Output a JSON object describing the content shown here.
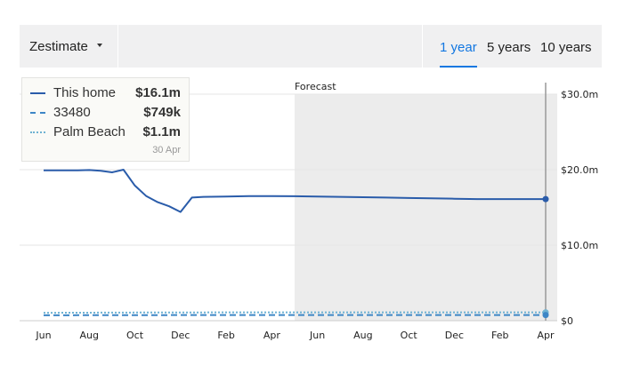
{
  "header": {
    "dropdown_label": "Zestimate",
    "tabs": [
      {
        "label": "1 year",
        "active": true
      },
      {
        "label": "5 years",
        "active": false
      },
      {
        "label": "10 years",
        "active": false
      }
    ]
  },
  "legend": {
    "items": [
      {
        "name": "This home",
        "value": "$16.1m",
        "style": "solid",
        "color": "#2a5caa"
      },
      {
        "name": "33480",
        "value": "$749k",
        "style": "dashed",
        "color": "#3d86c6"
      },
      {
        "name": "Palm Beach",
        "value": "$1.1m",
        "style": "dotted",
        "color": "#6fb2d2"
      }
    ],
    "date": "30 Apr"
  },
  "chart_data": {
    "type": "line",
    "forecast_label": "Forecast",
    "x": [
      0,
      0.5,
      1,
      1.5,
      2,
      2.5,
      3,
      3.5,
      4,
      4.5,
      5,
      5.5,
      6,
      6.5,
      7,
      8,
      9,
      10,
      11,
      12,
      13,
      14,
      15,
      16,
      17,
      18,
      19,
      20,
      21,
      22
    ],
    "forecast_start": 11,
    "x_tick_labels": [
      "Jun",
      "Aug",
      "Oct",
      "Dec",
      "Feb",
      "Apr",
      "Jun",
      "Aug",
      "Oct",
      "Dec",
      "Feb",
      "Apr"
    ],
    "x_tick_positions": [
      0,
      2,
      4,
      6,
      8,
      10,
      12,
      14,
      16,
      18,
      20,
      22
    ],
    "y_tick_labels": [
      "$0",
      "$10.0m",
      "$20.0m",
      "$30.0m"
    ],
    "y_tick_values": [
      0,
      10,
      20,
      30
    ],
    "ylim": [
      0,
      30
    ],
    "ylabel": "",
    "xlabel": "",
    "title": "",
    "series": [
      {
        "name": "This home",
        "style": "solid",
        "color": "#2a5caa",
        "values": [
          19.9,
          19.9,
          19.9,
          19.9,
          19.95,
          19.85,
          19.65,
          20.0,
          17.9,
          16.5,
          15.7,
          15.15,
          14.4,
          16.3,
          16.4,
          16.45,
          16.5,
          16.5,
          16.48,
          16.45,
          16.4,
          16.35,
          16.3,
          16.25,
          16.2,
          16.15,
          16.1,
          16.1,
          16.1,
          16.1
        ]
      },
      {
        "name": "33480",
        "style": "dashed",
        "color": "#3d86c6",
        "values": [
          0.72,
          0.72,
          0.72,
          0.73,
          0.73,
          0.73,
          0.73,
          0.74,
          0.74,
          0.74,
          0.74,
          0.74,
          0.75,
          0.75,
          0.75,
          0.75,
          0.75,
          0.75,
          0.75,
          0.75,
          0.75,
          0.75,
          0.75,
          0.75,
          0.75,
          0.75,
          0.749,
          0.749,
          0.749,
          0.749
        ]
      },
      {
        "name": "Palm Beach",
        "style": "dotted",
        "color": "#6fb2d2",
        "values": [
          1.05,
          1.05,
          1.06,
          1.06,
          1.06,
          1.07,
          1.07,
          1.07,
          1.08,
          1.08,
          1.08,
          1.08,
          1.09,
          1.09,
          1.09,
          1.1,
          1.1,
          1.1,
          1.1,
          1.1,
          1.1,
          1.1,
          1.1,
          1.1,
          1.1,
          1.1,
          1.1,
          1.1,
          1.1,
          1.1
        ]
      }
    ],
    "grid": true,
    "legend_position": "top-left"
  }
}
